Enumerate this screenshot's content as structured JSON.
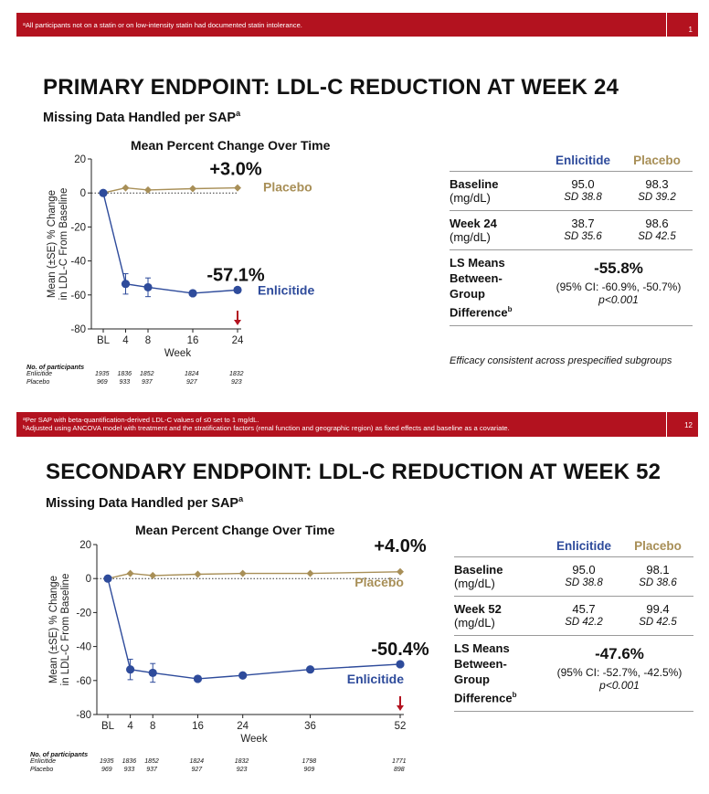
{
  "top_bar": {
    "footnote": "ᵃAll participants not on a statin or on low-intensity statin had documented statin intolerance.",
    "page": "1"
  },
  "slide1": {
    "title": "PRIMARY ENDPOINT: LDL-C REDUCTION AT WEEK 24",
    "subtitle": "Missing Data Handled per SAP",
    "subtitle_sup": "a",
    "chart_title": "Mean Percent Change Over Time",
    "ylabel_line1": "Mean (±SE) % Change",
    "ylabel_line2": "in LDL-C From Baseline",
    "xlabel": "Week",
    "placebo_callout": "+3.0%",
    "enlicitide_callout": "-57.1%",
    "placebo_label": "Placebo",
    "enlicitide_label": "Enlicitide",
    "participants": {
      "header": "No. of participants",
      "enlicitide_label": "Enlicitide",
      "placebo_label": "Placebo",
      "enlicitide": [
        "1935",
        "1836",
        "1852",
        "1824",
        "1832"
      ],
      "placebo": [
        "969",
        "933",
        "937",
        "927",
        "923"
      ]
    },
    "table": {
      "col_enlicitide": "Enlicitide",
      "col_placebo": "Placebo",
      "baseline_label": "Baseline",
      "baseline_unit": "(mg/dL)",
      "baseline_enlicitide": "95.0",
      "baseline_placebo": "98.3",
      "baseline_sd_enlicitide": "SD 38.8",
      "baseline_sd_placebo": "SD 39.2",
      "week_label": "Week 24",
      "week_unit": "(mg/dL)",
      "week_enlicitide": "38.7",
      "week_placebo": "98.6",
      "week_sd_enlicitide": "SD 35.6",
      "week_sd_placebo": "SD 42.5",
      "ls_label_1": "LS Means",
      "ls_label_2": "Between-",
      "ls_label_3": "Group",
      "ls_label_4": "Difference",
      "ls_label_sup": "b",
      "ls_value": "-55.8%",
      "ls_ci": "(95% CI: -60.9%, -50.7%)",
      "ls_p": "p<0.001"
    },
    "efficacy_note": "Efficacy consistent across prespecified subgroups"
  },
  "middle_bar": {
    "footnote_a": "ᵃPer SAP with beta-quantification-derived LDL-C values of ≤0 set to 1 mg/dL.",
    "footnote_b": "ᵇAdjusted using ANCOVA model with treatment and the stratification factors (renal function and geographic region) as fixed effects and baseline as a covariate.",
    "page": "12"
  },
  "slide2": {
    "title": "SECONDARY ENDPOINT: LDL-C REDUCTION AT WEEK 52",
    "subtitle": "Missing Data Handled per SAP",
    "subtitle_sup": "a",
    "chart_title": "Mean Percent Change Over Time",
    "ylabel_line1": "Mean (±SE) % Change",
    "ylabel_line2": "in LDL-C From Baseline",
    "xlabel": "Week",
    "placebo_callout": "+4.0%",
    "enlicitide_callout": "-50.4%",
    "placebo_label": "Placebo",
    "enlicitide_label": "Enlicitide",
    "participants": {
      "header": "No. of participants",
      "enlicitide_label": "Enlicitide",
      "placebo_label": "Placebo",
      "enlicitide": [
        "1935",
        "1836",
        "1852",
        "1824",
        "1832",
        "1798",
        "1771"
      ],
      "placebo": [
        "969",
        "933",
        "937",
        "927",
        "923",
        "909",
        "898"
      ]
    },
    "table": {
      "col_enlicitide": "Enlicitide",
      "col_placebo": "Placebo",
      "baseline_label": "Baseline",
      "baseline_unit": "(mg/dL)",
      "baseline_enlicitide": "95.0",
      "baseline_placebo": "98.1",
      "baseline_sd_enlicitide": "SD 38.8",
      "baseline_sd_placebo": "SD 38.6",
      "week_label": "Week 52",
      "week_unit": "(mg/dL)",
      "week_enlicitide": "45.7",
      "week_placebo": "99.4",
      "week_sd_enlicitide": "SD 42.2",
      "week_sd_placebo": "SD 42.5",
      "ls_label_1": "LS Means",
      "ls_label_2": "Between-",
      "ls_label_3": "Group",
      "ls_label_4": "Difference",
      "ls_label_sup": "b",
      "ls_value": "-47.6%",
      "ls_ci": "(95% CI: -52.7%, -42.5%)",
      "ls_p": "p<0.001"
    }
  },
  "colors": {
    "accent_red": "#b3121f",
    "enlicitide": "#2e4b9b",
    "placebo": "#a88f57"
  },
  "chart_data": [
    {
      "type": "line",
      "title": "Mean Percent Change Over Time",
      "xlabel": "Week",
      "ylabel": "Mean (±SE) % Change in LDL-C From Baseline",
      "x": [
        0,
        4,
        8,
        16,
        24
      ],
      "x_ticks": [
        "BL",
        "4",
        "8",
        "16",
        "24"
      ],
      "ylim": [
        -80,
        20
      ],
      "y_ticks": [
        20,
        0,
        -20,
        -40,
        -60,
        -80
      ],
      "series": [
        {
          "name": "Enlicitide",
          "values": [
            0,
            -53.5,
            -55.5,
            -59,
            -57.1
          ],
          "se": [
            0,
            6,
            5.5,
            0,
            0
          ]
        },
        {
          "name": "Placebo",
          "values": [
            0,
            3,
            1.8,
            2.5,
            3.0
          ]
        }
      ],
      "marker_week": 24
    },
    {
      "type": "line",
      "title": "Mean Percent Change Over Time",
      "xlabel": "Week",
      "ylabel": "Mean (±SE) % Change in LDL-C From Baseline",
      "x": [
        0,
        4,
        8,
        16,
        24,
        36,
        52
      ],
      "x_ticks": [
        "BL",
        "4",
        "8",
        "16",
        "24",
        "36",
        "52"
      ],
      "ylim": [
        -80,
        20
      ],
      "y_ticks": [
        20,
        0,
        -20,
        -40,
        -60,
        -80
      ],
      "series": [
        {
          "name": "Enlicitide",
          "values": [
            0,
            -53.5,
            -55.5,
            -59,
            -57,
            -53.5,
            -50.4
          ],
          "se": [
            0,
            6,
            5.5,
            0,
            0,
            0,
            0
          ]
        },
        {
          "name": "Placebo",
          "values": [
            0,
            3,
            1.8,
            2.5,
            3,
            3,
            4.0
          ]
        }
      ],
      "marker_week": 52
    }
  ]
}
